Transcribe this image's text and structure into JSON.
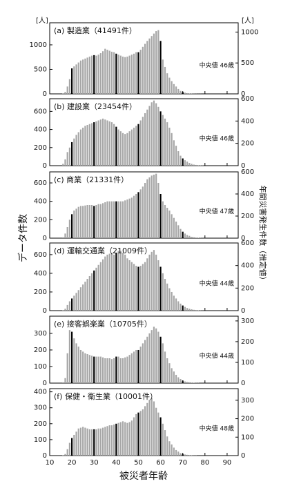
{
  "chart_data": [
    {
      "type": "bar",
      "label": "(a) 製造業（41491件）",
      "median_label": "中央値 46歳",
      "y_unit": "[人]",
      "y2_unit": "[人]",
      "ylabel": "データ件数",
      "y2label": "年間災害発生件数（推定値）",
      "color": "#a6a6a6",
      "highlight_color": "#000000",
      "highlight_every": 10,
      "xlim": [
        10,
        95
      ],
      "xticks": [
        10,
        20,
        30,
        40,
        50,
        60,
        70,
        80,
        90
      ],
      "ylim": [
        0,
        1450
      ],
      "yticks": [
        0,
        500,
        1000
      ],
      "y2lim": [
        0,
        1150
      ],
      "y2ticks": [
        0,
        500,
        1000
      ],
      "x": [
        16,
        17,
        18,
        19,
        20,
        21,
        22,
        23,
        24,
        25,
        26,
        27,
        28,
        29,
        30,
        31,
        32,
        33,
        34,
        35,
        36,
        37,
        38,
        39,
        40,
        41,
        42,
        43,
        44,
        45,
        46,
        47,
        48,
        49,
        50,
        51,
        52,
        53,
        54,
        55,
        56,
        57,
        58,
        59,
        60,
        61,
        62,
        63,
        64,
        65,
        66,
        67,
        68,
        69,
        70,
        71,
        72,
        73,
        74,
        75,
        76,
        77,
        78,
        79,
        80
      ],
      "values": [
        5,
        40,
        150,
        300,
        520,
        560,
        600,
        640,
        680,
        700,
        720,
        740,
        760,
        780,
        790,
        780,
        800,
        830,
        870,
        920,
        900,
        880,
        860,
        850,
        820,
        800,
        780,
        760,
        750,
        760,
        780,
        800,
        820,
        850,
        850,
        900,
        960,
        1020,
        1080,
        1130,
        1180,
        1230,
        1280,
        1300,
        1080,
        700,
        550,
        420,
        330,
        260,
        200,
        150,
        100,
        60,
        40,
        25,
        15,
        10,
        5,
        3,
        2,
        1,
        1,
        0,
        0
      ]
    },
    {
      "type": "bar",
      "label": "(b) 建設業（23454件）",
      "median_label": "中央値 46歳",
      "color": "#a6a6a6",
      "highlight_color": "#000000",
      "highlight_every": 10,
      "xlim": [
        10,
        95
      ],
      "xticks": [
        10,
        20,
        30,
        40,
        50,
        60,
        70,
        80,
        90
      ],
      "ylim": [
        0,
        740
      ],
      "yticks": [
        0,
        200,
        400,
        600
      ],
      "y2lim": [
        0,
        600
      ],
      "y2ticks": [
        0,
        200,
        400,
        600
      ],
      "x": [
        16,
        17,
        18,
        19,
        20,
        21,
        22,
        23,
        24,
        25,
        26,
        27,
        28,
        29,
        30,
        31,
        32,
        33,
        34,
        35,
        36,
        37,
        38,
        39,
        40,
        41,
        42,
        43,
        44,
        45,
        46,
        47,
        48,
        49,
        50,
        51,
        52,
        53,
        54,
        55,
        56,
        57,
        58,
        59,
        60,
        61,
        62,
        63,
        64,
        65,
        66,
        67,
        68,
        69,
        70,
        71,
        72,
        73,
        74,
        75,
        76,
        77,
        78,
        79,
        80
      ],
      "values": [
        20,
        70,
        150,
        200,
        260,
        300,
        340,
        370,
        400,
        420,
        440,
        450,
        460,
        470,
        480,
        490,
        500,
        510,
        520,
        510,
        500,
        490,
        480,
        460,
        430,
        400,
        380,
        360,
        350,
        360,
        380,
        400,
        420,
        440,
        460,
        500,
        540,
        580,
        620,
        660,
        700,
        720,
        690,
        650,
        600,
        560,
        520,
        480,
        420,
        360,
        280,
        220,
        160,
        110,
        80,
        60,
        45,
        30,
        20,
        12,
        8,
        5,
        3,
        2,
        1
      ]
    },
    {
      "type": "bar",
      "label": "(c) 商業（21331件）",
      "median_label": "中央値 47歳",
      "color": "#a6a6a6",
      "highlight_color": "#000000",
      "highlight_every": 10,
      "xlim": [
        10,
        95
      ],
      "xticks": [
        10,
        20,
        30,
        40,
        50,
        60,
        70,
        80,
        90
      ],
      "ylim": [
        0,
        720
      ],
      "yticks": [
        0,
        200,
        400,
        600
      ],
      "y2lim": [
        0,
        600
      ],
      "y2ticks": [
        0,
        200,
        400,
        600
      ],
      "x": [
        16,
        17,
        18,
        19,
        20,
        21,
        22,
        23,
        24,
        25,
        26,
        27,
        28,
        29,
        30,
        31,
        32,
        33,
        34,
        35,
        36,
        37,
        38,
        39,
        40,
        41,
        42,
        43,
        44,
        45,
        46,
        47,
        48,
        49,
        50,
        51,
        52,
        53,
        54,
        55,
        56,
        57,
        58,
        59,
        60,
        61,
        62,
        63,
        64,
        65,
        66,
        67,
        68,
        69,
        70,
        71,
        72,
        73,
        74,
        75,
        76,
        77,
        78,
        79,
        80
      ],
      "values": [
        10,
        50,
        120,
        200,
        260,
        300,
        320,
        340,
        350,
        350,
        355,
        360,
        360,
        360,
        350,
        360,
        370,
        370,
        380,
        390,
        400,
        400,
        400,
        400,
        400,
        400,
        400,
        400,
        410,
        420,
        430,
        440,
        460,
        480,
        500,
        530,
        560,
        600,
        640,
        660,
        680,
        690,
        700,
        600,
        480,
        400,
        360,
        330,
        300,
        260,
        220,
        180,
        140,
        100,
        70,
        50,
        35,
        25,
        15,
        10,
        6,
        4,
        2,
        1,
        1
      ]
    },
    {
      "type": "bar",
      "label": "(d) 運輸交通業（21009件）",
      "median_label": "中央値 44歳",
      "color": "#a6a6a6",
      "highlight_color": "#000000",
      "highlight_every": 10,
      "xlim": [
        10,
        95
      ],
      "xticks": [
        10,
        20,
        30,
        40,
        50,
        60,
        70,
        80,
        90
      ],
      "ylim": [
        0,
        725
      ],
      "yticks": [
        0,
        200,
        400,
        600
      ],
      "y2lim": [
        0,
        600
      ],
      "y2ticks": [
        0,
        200,
        400,
        600
      ],
      "x": [
        16,
        17,
        18,
        19,
        20,
        21,
        22,
        23,
        24,
        25,
        26,
        27,
        28,
        29,
        30,
        31,
        32,
        33,
        34,
        35,
        36,
        37,
        38,
        39,
        40,
        41,
        42,
        43,
        44,
        45,
        46,
        47,
        48,
        49,
        50,
        51,
        52,
        53,
        54,
        55,
        56,
        57,
        58,
        59,
        60,
        61,
        62,
        63,
        64,
        65,
        66,
        67,
        68,
        69,
        70,
        71,
        72,
        73,
        74,
        75,
        76,
        77,
        78,
        79,
        80
      ],
      "values": [
        5,
        20,
        60,
        100,
        130,
        160,
        190,
        220,
        250,
        280,
        310,
        340,
        370,
        400,
        430,
        460,
        490,
        520,
        550,
        580,
        600,
        610,
        620,
        600,
        620,
        640,
        640,
        620,
        600,
        560,
        540,
        520,
        500,
        480,
        470,
        480,
        500,
        520,
        560,
        600,
        630,
        650,
        600,
        540,
        470,
        400,
        340,
        290,
        240,
        200,
        160,
        130,
        100,
        75,
        55,
        40,
        28,
        20,
        14,
        9,
        6,
        4,
        2,
        1,
        1
      ]
    },
    {
      "type": "bar",
      "label": "(e) 接客娯楽業（10705件）",
      "median_label": "中央値 44歳",
      "color": "#a6a6a6",
      "highlight_color": "#000000",
      "highlight_every": 10,
      "xlim": [
        10,
        95
      ],
      "xticks": [
        10,
        20,
        30,
        40,
        50,
        60,
        70,
        80,
        90
      ],
      "ylim": [
        0,
        404
      ],
      "yticks": [
        0,
        100,
        200,
        300
      ],
      "y2lim": [
        0,
        323
      ],
      "y2ticks": [
        0,
        100,
        200,
        300
      ],
      "x": [
        16,
        17,
        18,
        19,
        20,
        21,
        22,
        23,
        24,
        25,
        26,
        27,
        28,
        29,
        30,
        31,
        32,
        33,
        34,
        35,
        36,
        37,
        38,
        39,
        40,
        41,
        42,
        43,
        44,
        45,
        46,
        47,
        48,
        49,
        50,
        51,
        52,
        53,
        54,
        55,
        56,
        57,
        58,
        59,
        60,
        61,
        62,
        63,
        64,
        65,
        66,
        67,
        68,
        69,
        70,
        71,
        72,
        73,
        74,
        75,
        76,
        77,
        78,
        79,
        80
      ],
      "values": [
        5,
        30,
        180,
        320,
        310,
        270,
        240,
        220,
        200,
        190,
        180,
        175,
        170,
        165,
        160,
        160,
        160,
        160,
        155,
        150,
        150,
        150,
        145,
        150,
        160,
        160,
        150,
        150,
        155,
        160,
        170,
        180,
        190,
        200,
        200,
        220,
        240,
        260,
        280,
        300,
        320,
        340,
        330,
        310,
        280,
        240,
        190,
        150,
        120,
        90,
        70,
        50,
        35,
        25,
        15,
        10,
        7,
        5,
        3,
        2,
        1,
        1,
        0,
        0,
        0
      ]
    },
    {
      "type": "bar",
      "label": "(f) 保健・衛生業（10001件）",
      "median_label": "中央値 48歳",
      "xlabel": "被災者年齢",
      "color": "#a6a6a6",
      "highlight_color": "#000000",
      "highlight_every": 10,
      "xlim": [
        10,
        95
      ],
      "xticks": [
        10,
        20,
        30,
        40,
        50,
        60,
        70,
        80,
        90
      ],
      "ylim": [
        0,
        420
      ],
      "yticks": [
        0,
        100,
        200,
        300,
        400
      ],
      "y2lim": [
        0,
        363
      ],
      "y2ticks": [
        0,
        100,
        200,
        300
      ],
      "x": [
        16,
        17,
        18,
        19,
        20,
        21,
        22,
        23,
        24,
        25,
        26,
        27,
        28,
        29,
        30,
        31,
        32,
        33,
        34,
        35,
        36,
        37,
        38,
        39,
        40,
        41,
        42,
        43,
        44,
        45,
        46,
        47,
        48,
        49,
        50,
        51,
        52,
        53,
        54,
        55,
        56,
        57,
        58,
        59,
        60,
        61,
        62,
        63,
        64,
        65,
        66,
        67,
        68,
        69,
        70,
        71,
        72,
        73,
        74,
        75,
        76,
        77,
        78,
        79,
        80
      ],
      "values": [
        2,
        10,
        40,
        80,
        110,
        130,
        150,
        170,
        175,
        180,
        175,
        170,
        165,
        165,
        165,
        165,
        170,
        170,
        175,
        180,
        185,
        190,
        190,
        195,
        200,
        205,
        210,
        215,
        210,
        205,
        210,
        220,
        240,
        260,
        270,
        280,
        290,
        310,
        330,
        350,
        360,
        340,
        300,
        270,
        240,
        200,
        160,
        120,
        90,
        70,
        50,
        35,
        25,
        15,
        10,
        7,
        5,
        3,
        2,
        1,
        1,
        0,
        0,
        0,
        0
      ]
    }
  ]
}
